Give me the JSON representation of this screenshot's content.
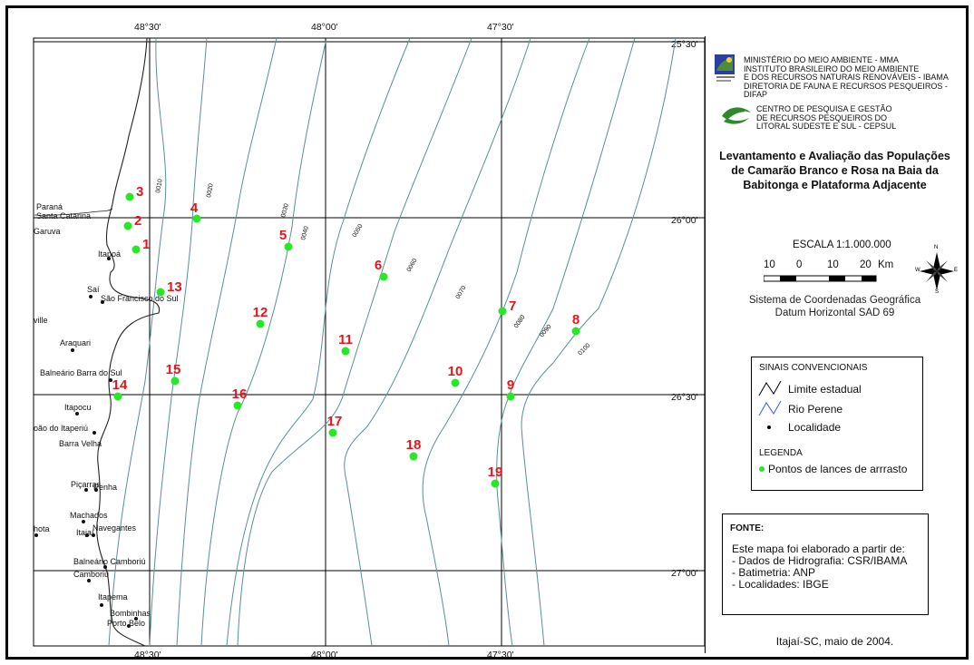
{
  "map": {
    "coord_top": [
      "48°30'",
      "48°00'",
      "47°30'"
    ],
    "coord_right": [
      "25°30'",
      "26°00'",
      "26°30'",
      "27°00'"
    ],
    "coord_bottom": [
      "48°30'",
      "48°00'",
      "47°30'"
    ],
    "state_labels": [
      "Paraná",
      "Santa Catarina"
    ],
    "towns": [
      "Garuva",
      "Itapoá",
      "Saí",
      "São Francisco do Sul",
      "ville",
      "Araquari",
      "Balneário Barra do Sul",
      "Itapocu",
      "oão do Itaperiú",
      "Barra Velha",
      "Piçarras",
      "Penha",
      "Machados",
      "Itajaí",
      "Navegantes",
      "hota",
      "Balneário Camboriú",
      "Camboriú",
      "Itapema",
      "Bombinhas",
      "Porto Belo"
    ],
    "isobaths": [
      "0010",
      "0020",
      "0030",
      "0040",
      "0050",
      "0060",
      "0070",
      "0080",
      "0090",
      "0100"
    ],
    "points": [
      "1",
      "2",
      "3",
      "4",
      "5",
      "6",
      "7",
      "8",
      "9",
      "10",
      "11",
      "12",
      "13",
      "14",
      "15",
      "16",
      "17",
      "18",
      "19"
    ],
    "point_color": "#27e827",
    "point_label_color": "#e8141b"
  },
  "panel": {
    "agency1": [
      "MINISTÉRIO DO MEIO AMBIENTE - MMA",
      "INSTITUTO BRASILEIRO DO MEIO AMBIENTE",
      "E DOS RECURSOS NATURAIS RENOVÁVEIS - IBAMA",
      "DIRETORIA DE FAUNA E RECURSOS PESQUEIROS - DIFAP"
    ],
    "agency2": [
      "CENTRO DE PESQUISA E GESTÃO",
      "DE RECURSOS PESQUEIROS DO",
      "LITORAL SUDESTE E SUL - CEPSUL"
    ],
    "title": [
      "Levantamento e Avaliação das Populações",
      "de Camarão Branco e Rosa na Baia da",
      "Babitonga e Plataforma Adjacente"
    ],
    "scale_title": "ESCALA 1:1.000.000",
    "scale_ticks": [
      "10",
      "0",
      "10",
      "20",
      "Km"
    ],
    "compass": [
      "N",
      "S",
      "E",
      "W"
    ],
    "coord_system": [
      "Sistema de Coordenadas Geográfica",
      "Datum Horizontal SAD 69"
    ],
    "legend": {
      "header": "SINAIS CONVENCIONAIS",
      "items": [
        "Limite estadual",
        "Rio Perene",
        "Localidade"
      ],
      "header2": "LEGENDA",
      "point_item": "Pontos de lances de arrrasto"
    },
    "fonte": {
      "header": "FONTE:",
      "lines": [
        "Este mapa foi elaborado a partir de:",
        "- Dados de Hidrografia: CSR/IBAMA",
        "- Batimetria: ANP",
        "- Localidades: IBGE"
      ]
    },
    "footer": "Itajaí-SC, maio de 2004."
  }
}
